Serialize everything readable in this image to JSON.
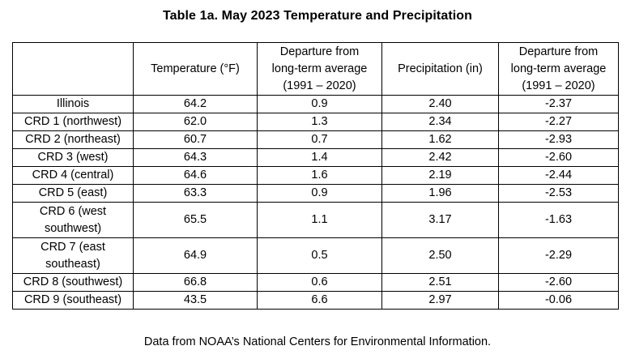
{
  "title": "Table 1a.  May 2023 Temperature and Precipitation",
  "table": {
    "headers": {
      "region": "",
      "temperature": "Temperature (°F)",
      "temp_departure_l1": "Departure from",
      "temp_departure_l2": "long-term average",
      "temp_departure_l3": "(1991 – 2020)",
      "precipitation": "Precipitation (in)",
      "precip_departure_l1": "Departure from",
      "precip_departure_l2": "long-term average",
      "precip_departure_l3": "(1991 – 2020)"
    },
    "rows": [
      {
        "region": "Illinois",
        "temperature": "64.2",
        "temp_departure": "0.9",
        "precipitation": "2.40",
        "precip_departure": "-2.37"
      },
      {
        "region": "CRD 1 (northwest)",
        "temperature": "62.0",
        "temp_departure": "1.3",
        "precipitation": "2.34",
        "precip_departure": "-2.27"
      },
      {
        "region": "CRD 2 (northeast)",
        "temperature": "60.7",
        "temp_departure": "0.7",
        "precipitation": "1.62",
        "precip_departure": "-2.93"
      },
      {
        "region": "CRD 3 (west)",
        "temperature": "64.3",
        "temp_departure": "1.4",
        "precipitation": "2.42",
        "precip_departure": "-2.60"
      },
      {
        "region": "CRD 4 (central)",
        "temperature": "64.6",
        "temp_departure": "1.6",
        "precipitation": "2.19",
        "precip_departure": "-2.44"
      },
      {
        "region": "CRD 5 (east)",
        "temperature": "63.3",
        "temp_departure": "0.9",
        "precipitation": "1.96",
        "precip_departure": "-2.53"
      },
      {
        "region_l1": "CRD 6 (west",
        "region_l2": "southwest)",
        "temperature": "65.5",
        "temp_departure": "1.1",
        "precipitation": "3.17",
        "precip_departure": "-1.63"
      },
      {
        "region_l1": "CRD 7 (east",
        "region_l2": "southeast)",
        "temperature": "64.9",
        "temp_departure": "0.5",
        "precipitation": "2.50",
        "precip_departure": "-2.29"
      },
      {
        "region": "CRD 8 (southwest)",
        "temperature": "66.8",
        "temp_departure": "0.6",
        "precipitation": "2.51",
        "precip_departure": "-2.60"
      },
      {
        "region": "CRD 9 (southeast)",
        "temperature": "43.5",
        "temp_departure": "6.6",
        "precipitation": "2.97",
        "precip_departure": "-0.06"
      }
    ]
  },
  "footnote": "Data from NOAA’s National Centers for Environmental Information."
}
